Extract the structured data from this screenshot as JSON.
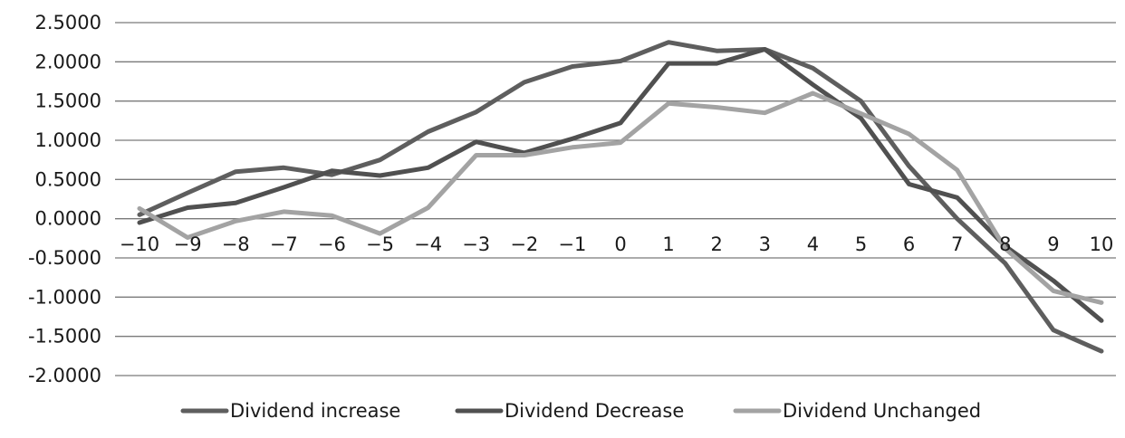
{
  "chart_data": {
    "type": "line",
    "title": "",
    "xlabel": "",
    "ylabel": "",
    "categories": [
      "−10",
      "−9",
      "−8",
      "−7",
      "−6",
      "−5",
      "−4",
      "−3",
      "−2",
      "−1",
      "0",
      "1",
      "2",
      "3",
      "4",
      "5",
      "6",
      "7",
      "8",
      "9",
      "10"
    ],
    "y_ticks": [
      "2.5000",
      "2.0000",
      "1.5000",
      "1.0000",
      "0.5000",
      "0.0000",
      "-0.5000",
      "-1.0000",
      "-1.5000",
      "-2.0000"
    ],
    "ylim": [
      -2.0,
      2.5
    ],
    "y_step": 0.5,
    "grid": true,
    "legend_position": "bottom",
    "series": [
      {
        "name": "Dividend increase",
        "color": "#5e5e5e",
        "values": [
          0.05,
          0.33,
          0.6,
          0.65,
          0.56,
          0.75,
          1.11,
          1.36,
          1.74,
          1.94,
          2.01,
          2.25,
          2.14,
          2.16,
          1.92,
          1.5,
          0.67,
          0.0,
          -0.57,
          -1.42,
          -1.69
        ]
      },
      {
        "name": "Dividend Decrease",
        "color": "#505050",
        "values": [
          -0.05,
          0.14,
          0.2,
          0.4,
          0.61,
          0.55,
          0.65,
          0.98,
          0.84,
          1.02,
          1.22,
          1.98,
          1.98,
          2.16,
          1.71,
          1.28,
          0.44,
          0.27,
          -0.35,
          -0.79,
          -1.3
        ]
      },
      {
        "name": "Dividend Unchanged",
        "color": "#a3a3a3",
        "values": [
          0.13,
          -0.24,
          -0.03,
          0.09,
          0.04,
          -0.19,
          0.14,
          0.81,
          0.81,
          0.91,
          0.97,
          1.47,
          1.42,
          1.35,
          1.6,
          1.34,
          1.08,
          0.62,
          -0.38,
          -0.92,
          -1.07
        ]
      }
    ]
  }
}
